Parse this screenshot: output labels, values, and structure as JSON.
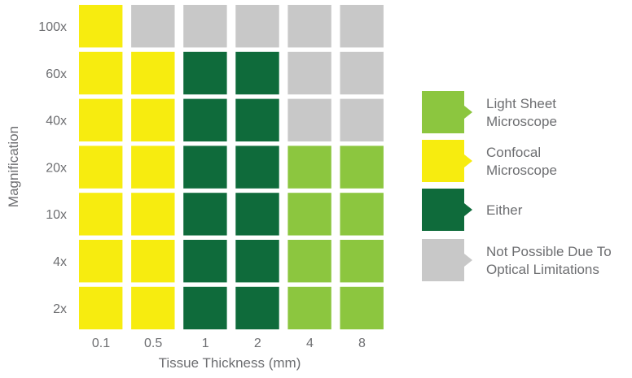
{
  "chart_data": {
    "type": "heatmap",
    "xlabel": "Tissue Thickness (mm)",
    "ylabel": "Magnification",
    "x_categories": [
      "0.1",
      "0.5",
      "1",
      "2",
      "4",
      "8"
    ],
    "y_categories": [
      "100x",
      "60x",
      "40x",
      "20x",
      "10x",
      "4x",
      "2x"
    ],
    "category_keys": [
      "light_sheet",
      "confocal",
      "either",
      "not_possible"
    ],
    "grid": [
      [
        "confocal",
        "not_possible",
        "not_possible",
        "not_possible",
        "not_possible",
        "not_possible"
      ],
      [
        "confocal",
        "confocal",
        "either",
        "either",
        "not_possible",
        "not_possible"
      ],
      [
        "confocal",
        "confocal",
        "either",
        "either",
        "not_possible",
        "not_possible"
      ],
      [
        "confocal",
        "confocal",
        "either",
        "either",
        "light_sheet",
        "light_sheet"
      ],
      [
        "confocal",
        "confocal",
        "either",
        "either",
        "light_sheet",
        "light_sheet"
      ],
      [
        "confocal",
        "confocal",
        "either",
        "either",
        "light_sheet",
        "light_sheet"
      ],
      [
        "confocal",
        "confocal",
        "either",
        "either",
        "light_sheet",
        "light_sheet"
      ]
    ],
    "legend": [
      {
        "key": "light_sheet",
        "lines": [
          "Light Sheet",
          "Microscope"
        ],
        "color": "#8cc63f"
      },
      {
        "key": "confocal",
        "lines": [
          "Confocal",
          "Microscope"
        ],
        "color": "#f7ec0f"
      },
      {
        "key": "either",
        "lines": [
          "Either"
        ],
        "color": "#0f6b3b"
      },
      {
        "key": "not_possible",
        "lines": [
          "Not Possible Due To",
          "Optical Limitations"
        ],
        "color": "#c8c8c8"
      }
    ],
    "legend_position": "right",
    "grid_lines": false
  }
}
